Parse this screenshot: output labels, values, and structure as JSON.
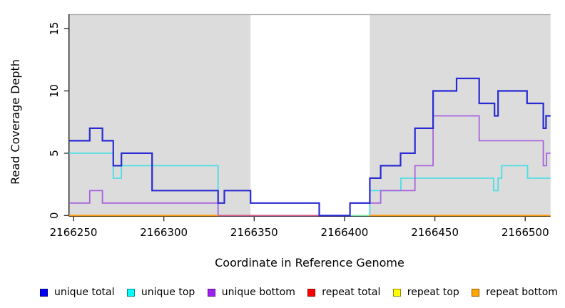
{
  "chart_data": {
    "type": "line",
    "subtype": "step-after-coverage-plot",
    "title": "",
    "xlabel": "Coordinate in Reference Genome",
    "ylabel": "Read Coverage Depth",
    "xlim": [
      2166247.5,
      2166514
    ],
    "ylim": [
      0,
      16.15
    ],
    "x_ticks": [
      2166250,
      2166300,
      2166350,
      2166400,
      2166450,
      2166500
    ],
    "y_ticks": [
      0,
      5,
      10,
      15
    ],
    "grid": "off",
    "legend_position": "bottom",
    "background_band_color": "#dcdcdc",
    "background_bands": [
      {
        "from": 2166247.5,
        "to": 2166348
      },
      {
        "from": 2166414,
        "to": 2166514
      }
    ],
    "series": [
      {
        "name": "unique total",
        "legend_color": "#0000ff",
        "line_color": "#2a2ad4",
        "width": 2.2,
        "z": 4,
        "segments": [
          [
            [
              2166247.5,
              6
            ],
            [
              2166259,
              7
            ],
            [
              2166266,
              6
            ],
            [
              2166272,
              4
            ],
            [
              2166276.5,
              5
            ],
            [
              2166293.5,
              2
            ],
            [
              2166330,
              1
            ],
            [
              2166333.5,
              2
            ],
            [
              2166348,
              1
            ],
            [
              2166386,
              0
            ],
            [
              2166403,
              1
            ],
            [
              2166414,
              3
            ],
            [
              2166420,
              4
            ],
            [
              2166431,
              5
            ],
            [
              2166439,
              7
            ],
            [
              2166449,
              10
            ],
            [
              2166462,
              11
            ],
            [
              2166474.5,
              9
            ],
            [
              2166483,
              8
            ],
            [
              2166485,
              10
            ],
            [
              2166501,
              9
            ],
            [
              2166510,
              7
            ],
            [
              2166511.5,
              8
            ],
            [
              2166514,
              8
            ]
          ]
        ]
      },
      {
        "name": "unique top",
        "legend_color": "#00ffff",
        "line_color": "#48dfe3",
        "width": 1.8,
        "z": 0,
        "segments": [
          [
            [
              2166247.5,
              5
            ],
            [
              2166272,
              3
            ],
            [
              2166276.5,
              4
            ],
            [
              2166330,
              0
            ],
            [
              2166414,
              2
            ],
            [
              2166431.2,
              3
            ],
            [
              2166482.5,
              2
            ],
            [
              2166485,
              3
            ],
            [
              2166487,
              4
            ],
            [
              2166501.3,
              3
            ],
            [
              2166514,
              3
            ]
          ]
        ]
      },
      {
        "name": "unique bottom",
        "legend_color": "#a020f0",
        "line_color": "#a863de",
        "width": 1.8,
        "z": 1,
        "segments": [
          [
            [
              2166247.5,
              1
            ],
            [
              2166259,
              2
            ],
            [
              2166266,
              1
            ],
            [
              2166330,
              0
            ],
            [
              2166403,
              1
            ],
            [
              2166420,
              2
            ],
            [
              2166439,
              4
            ],
            [
              2166449,
              8
            ],
            [
              2166474.5,
              6
            ],
            [
              2166510,
              4
            ],
            [
              2166511.8,
              5
            ],
            [
              2166514,
              5
            ]
          ]
        ]
      },
      {
        "name": "repeat total",
        "legend_color": "#ff0000",
        "line_color": "#dc5a7c",
        "width": 1.6,
        "z": 2,
        "segments": [
          [
            [
              2166330,
              0
            ],
            [
              2166403,
              0
            ]
          ]
        ]
      },
      {
        "name": "repeat top",
        "legend_color": "#ffff00",
        "line_color": "#87dfa5",
        "width": 1.6,
        "z": 3,
        "segments": [
          [
            [
              2166403,
              0
            ],
            [
              2166414,
              0
            ]
          ]
        ]
      },
      {
        "name": "repeat bottom",
        "legend_color": "#ffa500",
        "line_color": "#fb9911",
        "width": 2.2,
        "z": 5,
        "segments": [
          [
            [
              2166247.5,
              0
            ],
            [
              2166330,
              0
            ]
          ],
          [
            [
              2166414,
              0
            ],
            [
              2166514,
              0
            ]
          ]
        ]
      }
    ]
  },
  "legend": {
    "items": [
      {
        "label": "unique total",
        "color": "#0000ff"
      },
      {
        "label": "unique top",
        "color": "#00ffff"
      },
      {
        "label": "unique bottom",
        "color": "#a020f0"
      },
      {
        "label": "repeat total",
        "color": "#ff0000"
      },
      {
        "label": "repeat top",
        "color": "#ffff00"
      },
      {
        "label": "repeat bottom",
        "color": "#ffa500"
      }
    ]
  },
  "axes": {
    "x_title": "Coordinate in Reference Genome",
    "y_title": "Read Coverage Depth"
  }
}
